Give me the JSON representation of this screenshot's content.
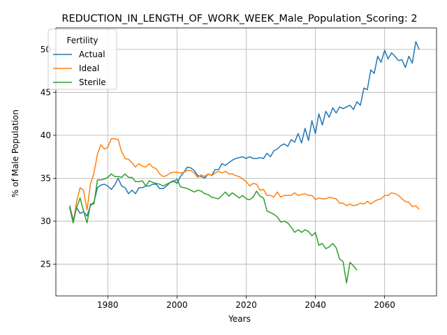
{
  "chart_data": {
    "type": "line",
    "title": "REDUCTION_IN_LENGTH_OF_WORK_WEEK_Male_Population_Scoring: 2",
    "xlabel": "Years",
    "ylabel": "% of Male Population",
    "xlim": [
      1965,
      2075
    ],
    "ylim": [
      21.3,
      52.5
    ],
    "xticks": [
      1980,
      2000,
      2020,
      2040,
      2060
    ],
    "yticks": [
      25,
      30,
      35,
      40,
      45,
      50
    ],
    "grid": true,
    "legend": {
      "title": "Fertility",
      "placement": "top-left"
    },
    "series": [
      {
        "name": "Actual",
        "color": "#1f77b4",
        "points": [
          [
            1969,
            31.8
          ],
          [
            1970,
            30.1
          ],
          [
            1971,
            31.6
          ],
          [
            1972,
            30.9
          ],
          [
            1973,
            31.1
          ],
          [
            1974,
            30.6
          ],
          [
            1975,
            31.8
          ],
          [
            1976,
            32.2
          ],
          [
            1977,
            33.9
          ],
          [
            1978,
            34.2
          ],
          [
            1979,
            34.3
          ],
          [
            1980,
            34.1
          ],
          [
            1981,
            33.7
          ],
          [
            1982,
            34.2
          ],
          [
            1983,
            35.0
          ],
          [
            1984,
            34.1
          ],
          [
            1985,
            33.9
          ],
          [
            1986,
            33.2
          ],
          [
            1987,
            33.6
          ],
          [
            1988,
            33.2
          ],
          [
            1989,
            33.9
          ],
          [
            1990,
            33.9
          ],
          [
            1991,
            34.1
          ],
          [
            1992,
            34.1
          ],
          [
            1993,
            34.3
          ],
          [
            1994,
            34.3
          ],
          [
            1995,
            33.8
          ],
          [
            1996,
            33.8
          ],
          [
            1997,
            34.1
          ],
          [
            1998,
            34.5
          ],
          [
            1999,
            34.7
          ],
          [
            2000,
            34.4
          ],
          [
            2001,
            35.2
          ],
          [
            2002,
            35.7
          ],
          [
            2003,
            36.3
          ],
          [
            2004,
            36.2
          ],
          [
            2005,
            35.9
          ],
          [
            2006,
            35.3
          ],
          [
            2007,
            35.2
          ],
          [
            2008,
            35.0
          ],
          [
            2009,
            35.5
          ],
          [
            2010,
            35.3
          ],
          [
            2011,
            36.0
          ],
          [
            2012,
            36.0
          ],
          [
            2013,
            36.7
          ],
          [
            2014,
            36.5
          ],
          [
            2015,
            36.8
          ],
          [
            2016,
            37.1
          ],
          [
            2017,
            37.3
          ],
          [
            2018,
            37.4
          ],
          [
            2019,
            37.5
          ],
          [
            2020,
            37.3
          ],
          [
            2021,
            37.5
          ],
          [
            2022,
            37.3
          ],
          [
            2023,
            37.3
          ],
          [
            2024,
            37.4
          ],
          [
            2025,
            37.3
          ],
          [
            2026,
            37.9
          ],
          [
            2027,
            37.5
          ],
          [
            2028,
            38.2
          ],
          [
            2029,
            38.4
          ],
          [
            2030,
            38.8
          ],
          [
            2031,
            39.0
          ],
          [
            2032,
            38.7
          ],
          [
            2033,
            39.5
          ],
          [
            2034,
            39.2
          ],
          [
            2035,
            40.2
          ],
          [
            2036,
            39.1
          ],
          [
            2037,
            40.8
          ],
          [
            2038,
            39.4
          ],
          [
            2039,
            41.7
          ],
          [
            2040,
            40.2
          ],
          [
            2041,
            42.5
          ],
          [
            2042,
            41.2
          ],
          [
            2043,
            42.8
          ],
          [
            2044,
            42.1
          ],
          [
            2045,
            43.2
          ],
          [
            2046,
            42.6
          ],
          [
            2047,
            43.3
          ],
          [
            2048,
            43.1
          ],
          [
            2049,
            43.3
          ],
          [
            2050,
            43.5
          ],
          [
            2051,
            43.0
          ],
          [
            2052,
            43.9
          ],
          [
            2053,
            43.5
          ],
          [
            2054,
            45.5
          ],
          [
            2055,
            45.3
          ],
          [
            2056,
            47.6
          ],
          [
            2057,
            47.2
          ],
          [
            2058,
            49.2
          ],
          [
            2059,
            48.5
          ],
          [
            2060,
            49.9
          ],
          [
            2061,
            48.9
          ],
          [
            2062,
            49.6
          ],
          [
            2063,
            49.2
          ],
          [
            2064,
            48.7
          ],
          [
            2065,
            48.8
          ],
          [
            2066,
            47.9
          ],
          [
            2067,
            49.2
          ],
          [
            2068,
            48.4
          ],
          [
            2069,
            50.9
          ],
          [
            2070,
            50.0
          ]
        ]
      },
      {
        "name": "Ideal",
        "color": "#ff7f0e",
        "points": [
          [
            1969,
            31.6
          ],
          [
            1970,
            29.8
          ],
          [
            1971,
            32.3
          ],
          [
            1972,
            33.9
          ],
          [
            1973,
            33.6
          ],
          [
            1974,
            31.3
          ],
          [
            1975,
            34.3
          ],
          [
            1976,
            35.6
          ],
          [
            1977,
            37.8
          ],
          [
            1978,
            38.9
          ],
          [
            1979,
            38.4
          ],
          [
            1980,
            38.6
          ],
          [
            1981,
            39.6
          ],
          [
            1982,
            39.6
          ],
          [
            1983,
            39.5
          ],
          [
            1984,
            38.1
          ],
          [
            1985,
            37.3
          ],
          [
            1986,
            37.2
          ],
          [
            1987,
            36.8
          ],
          [
            1988,
            36.3
          ],
          [
            1989,
            36.7
          ],
          [
            1990,
            36.4
          ],
          [
            1991,
            36.3
          ],
          [
            1992,
            36.7
          ],
          [
            1993,
            36.3
          ],
          [
            1994,
            36.1
          ],
          [
            1995,
            35.5
          ],
          [
            1996,
            35.2
          ],
          [
            1997,
            35.3
          ],
          [
            1998,
            35.6
          ],
          [
            1999,
            35.7
          ],
          [
            2000,
            35.7
          ],
          [
            2001,
            35.6
          ],
          [
            2002,
            35.7
          ],
          [
            2003,
            35.9
          ],
          [
            2004,
            35.9
          ],
          [
            2005,
            35.6
          ],
          [
            2006,
            35.1
          ],
          [
            2007,
            35.4
          ],
          [
            2008,
            35.2
          ],
          [
            2009,
            35.5
          ],
          [
            2010,
            35.3
          ],
          [
            2011,
            35.6
          ],
          [
            2012,
            35.8
          ],
          [
            2013,
            35.6
          ],
          [
            2014,
            35.8
          ],
          [
            2015,
            35.5
          ],
          [
            2016,
            35.5
          ],
          [
            2017,
            35.3
          ],
          [
            2018,
            35.2
          ],
          [
            2019,
            34.9
          ],
          [
            2020,
            34.6
          ],
          [
            2021,
            34.1
          ],
          [
            2022,
            34.4
          ],
          [
            2023,
            34.3
          ],
          [
            2024,
            33.6
          ],
          [
            2025,
            33.7
          ],
          [
            2026,
            33.0
          ],
          [
            2027,
            33.0
          ],
          [
            2028,
            32.8
          ],
          [
            2029,
            33.4
          ],
          [
            2030,
            32.8
          ],
          [
            2031,
            33.0
          ],
          [
            2032,
            33.0
          ],
          [
            2033,
            33.0
          ],
          [
            2034,
            33.3
          ],
          [
            2035,
            33.0
          ],
          [
            2036,
            33.1
          ],
          [
            2037,
            33.2
          ],
          [
            2038,
            33.0
          ],
          [
            2039,
            33.0
          ],
          [
            2040,
            32.5
          ],
          [
            2041,
            32.7
          ],
          [
            2042,
            32.6
          ],
          [
            2043,
            32.6
          ],
          [
            2044,
            32.8
          ],
          [
            2045,
            32.7
          ],
          [
            2046,
            32.6
          ],
          [
            2047,
            32.1
          ],
          [
            2048,
            32.1
          ],
          [
            2049,
            31.8
          ],
          [
            2050,
            32.0
          ],
          [
            2051,
            31.8
          ],
          [
            2052,
            31.9
          ],
          [
            2053,
            32.1
          ],
          [
            2054,
            32.0
          ],
          [
            2055,
            32.3
          ],
          [
            2056,
            32.0
          ],
          [
            2057,
            32.3
          ],
          [
            2058,
            32.5
          ],
          [
            2059,
            32.6
          ],
          [
            2060,
            33.0
          ],
          [
            2061,
            33.0
          ],
          [
            2062,
            33.3
          ],
          [
            2063,
            33.2
          ],
          [
            2064,
            33.0
          ],
          [
            2065,
            32.6
          ],
          [
            2066,
            32.3
          ],
          [
            2067,
            32.2
          ],
          [
            2068,
            31.7
          ],
          [
            2069,
            31.8
          ],
          [
            2070,
            31.4
          ]
        ]
      },
      {
        "name": "Sterile",
        "color": "#2ca02c",
        "points": [
          [
            1969,
            31.6
          ],
          [
            1970,
            29.8
          ],
          [
            1971,
            31.6
          ],
          [
            1972,
            32.7
          ],
          [
            1973,
            31.2
          ],
          [
            1974,
            29.8
          ],
          [
            1975,
            32.0
          ],
          [
            1976,
            32.0
          ],
          [
            1977,
            34.8
          ],
          [
            1978,
            34.8
          ],
          [
            1979,
            34.9
          ],
          [
            1980,
            35.1
          ],
          [
            1981,
            35.5
          ],
          [
            1982,
            35.2
          ],
          [
            1983,
            35.2
          ],
          [
            1984,
            35.1
          ],
          [
            1985,
            35.5
          ],
          [
            1986,
            35.1
          ],
          [
            1987,
            35.1
          ],
          [
            1988,
            34.6
          ],
          [
            1989,
            34.6
          ],
          [
            1990,
            34.7
          ],
          [
            1991,
            34.1
          ],
          [
            1992,
            34.7
          ],
          [
            1993,
            34.5
          ],
          [
            1994,
            34.4
          ],
          [
            1995,
            34.3
          ],
          [
            1996,
            34.1
          ],
          [
            1997,
            34.3
          ],
          [
            1998,
            34.5
          ],
          [
            1999,
            34.6
          ],
          [
            2000,
            34.9
          ],
          [
            2001,
            34.0
          ],
          [
            2002,
            33.9
          ],
          [
            2003,
            33.8
          ],
          [
            2004,
            33.6
          ],
          [
            2005,
            33.4
          ],
          [
            2006,
            33.6
          ],
          [
            2007,
            33.5
          ],
          [
            2008,
            33.2
          ],
          [
            2009,
            33.1
          ],
          [
            2010,
            32.8
          ],
          [
            2011,
            32.7
          ],
          [
            2012,
            32.6
          ],
          [
            2013,
            33.0
          ],
          [
            2014,
            33.4
          ],
          [
            2015,
            32.9
          ],
          [
            2016,
            33.3
          ],
          [
            2017,
            33.0
          ],
          [
            2018,
            32.7
          ],
          [
            2019,
            33.0
          ],
          [
            2020,
            32.6
          ],
          [
            2021,
            32.5
          ],
          [
            2022,
            32.8
          ],
          [
            2023,
            33.5
          ],
          [
            2024,
            32.9
          ],
          [
            2025,
            32.7
          ],
          [
            2026,
            31.2
          ],
          [
            2027,
            31.0
          ],
          [
            2028,
            30.8
          ],
          [
            2029,
            30.5
          ],
          [
            2030,
            29.9
          ],
          [
            2031,
            30.0
          ],
          [
            2032,
            29.8
          ],
          [
            2033,
            29.3
          ],
          [
            2034,
            28.7
          ],
          [
            2035,
            29.0
          ],
          [
            2036,
            28.7
          ],
          [
            2037,
            29.0
          ],
          [
            2038,
            28.8
          ],
          [
            2039,
            28.3
          ],
          [
            2040,
            28.7
          ],
          [
            2041,
            27.2
          ],
          [
            2042,
            27.4
          ],
          [
            2043,
            26.8
          ],
          [
            2044,
            27.0
          ],
          [
            2045,
            27.4
          ],
          [
            2046,
            26.9
          ],
          [
            2047,
            25.6
          ],
          [
            2048,
            25.3
          ],
          [
            2049,
            22.8
          ],
          [
            2050,
            25.2
          ],
          [
            2051,
            24.8
          ],
          [
            2052,
            24.3
          ]
        ]
      }
    ]
  }
}
